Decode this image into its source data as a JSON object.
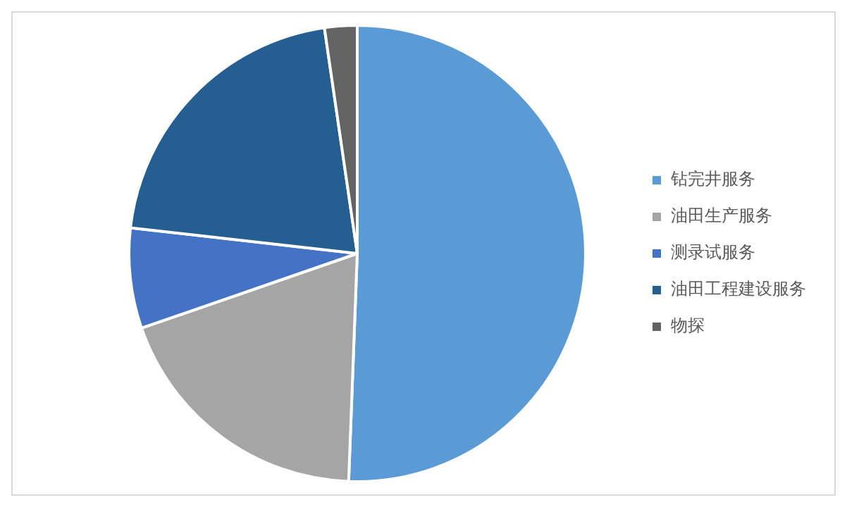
{
  "chart_data": {
    "type": "pie",
    "categories": [
      "钻完井服务",
      "油田生产服务",
      "测录试服务",
      "油田工程建设服务",
      "物探"
    ],
    "values": [
      50.6,
      19.1,
      7.1,
      20.9,
      2.3
    ],
    "colors": [
      "#5b9bd5",
      "#a5a5a5",
      "#4472c4",
      "#255e91",
      "#636363"
    ],
    "legend": "right"
  }
}
